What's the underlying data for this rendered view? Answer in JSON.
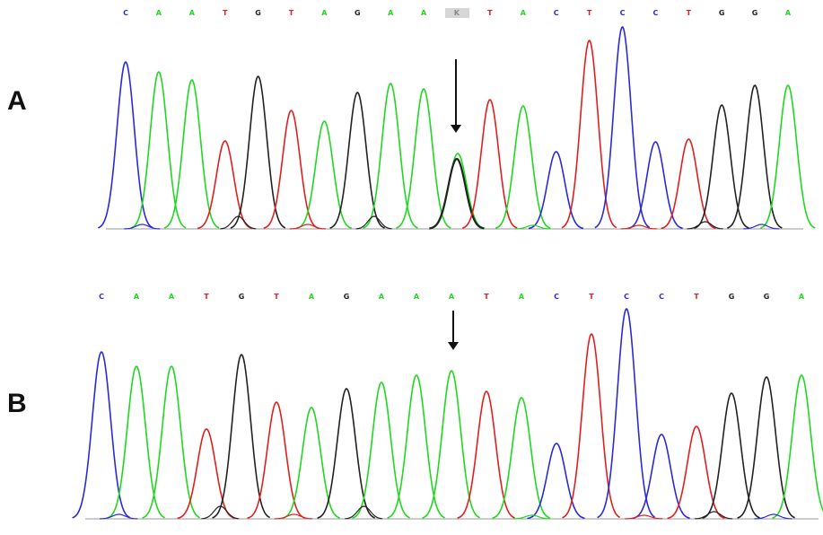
{
  "panels": [
    {
      "label": "A",
      "bases": [
        "C",
        "A",
        "A",
        "T",
        "G",
        "T",
        "A",
        "G",
        "A",
        "A",
        "K",
        "T",
        "A",
        "C",
        "T",
        "C",
        "C",
        "T",
        "G",
        "G",
        "A"
      ],
      "arrow_index": 10
    },
    {
      "label": "B",
      "bases": [
        "C",
        "A",
        "A",
        "T",
        "G",
        "T",
        "A",
        "G",
        "A",
        "A",
        "A",
        "T",
        "A",
        "C",
        "T",
        "C",
        "C",
        "T",
        "G",
        "G",
        "A"
      ],
      "arrow_index": 10
    }
  ],
  "colors": {
    "A": "#1fd81f",
    "C": "#2a2ad8",
    "G": "#222222",
    "T": "#e01f1f",
    "K": "#888888"
  }
}
